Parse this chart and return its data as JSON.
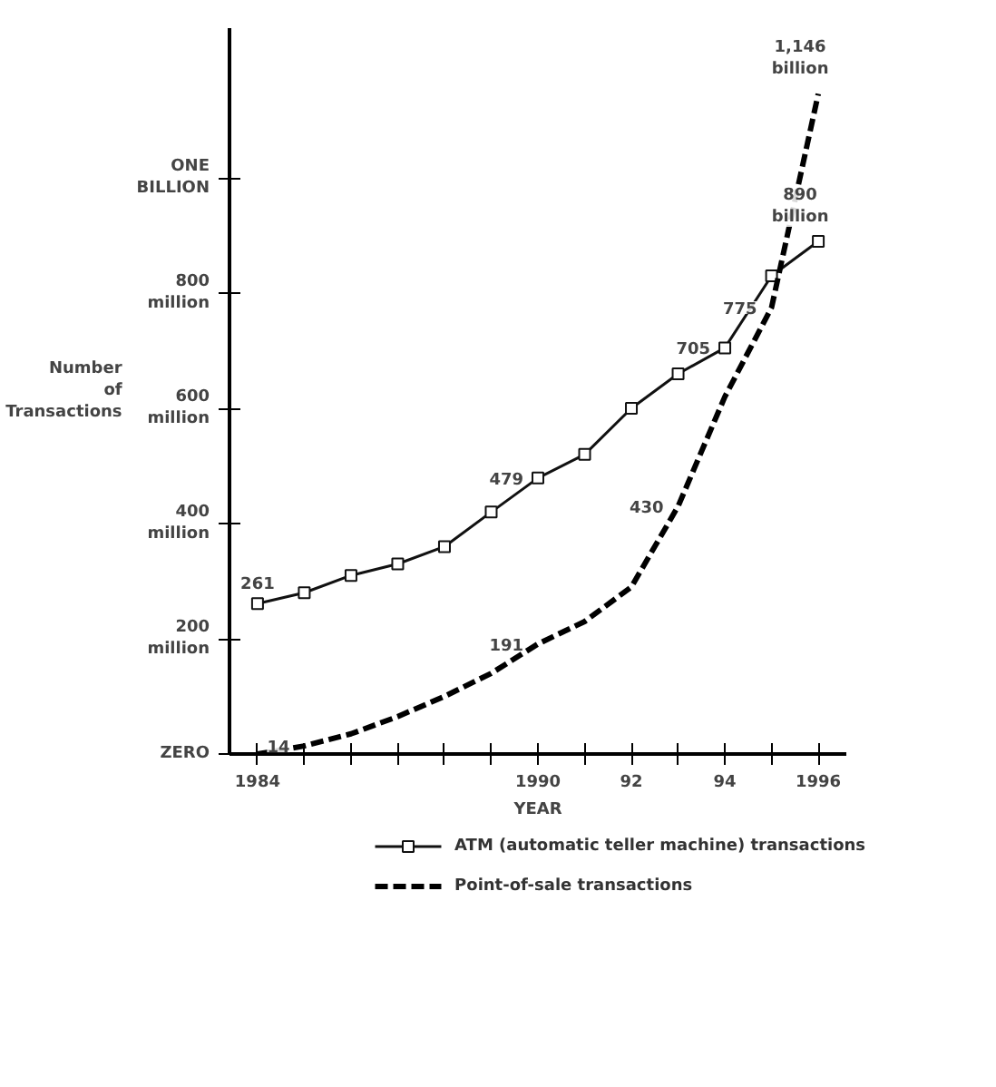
{
  "chart_data": {
    "type": "line",
    "x": [
      1984,
      1985,
      1986,
      1987,
      1988,
      1989,
      1990,
      1991,
      1992,
      1993,
      1994,
      1995,
      1996
    ],
    "series": [
      {
        "name": "ATM (automatic teller machine) transactions",
        "color": "#111111",
        "marker": "square",
        "line_style": "solid",
        "values": [
          261000000,
          280000000,
          310000000,
          330000000,
          360000000,
          420000000,
          479000000,
          520000000,
          600000000,
          660000000,
          705000000,
          830000000,
          890000000
        ]
      },
      {
        "name": "Point-of-sale transactions",
        "color": "#000000",
        "marker": "none",
        "line_style": "dashed",
        "values": [
          0,
          14000000,
          35000000,
          65000000,
          100000000,
          140000000,
          191000000,
          230000000,
          290000000,
          430000000,
          620000000,
          775000000,
          1146000000
        ]
      }
    ],
    "xlabel": "YEAR",
    "ylabel": "Number\nof\nTransactions",
    "xlim": [
      1983.4,
      1996.6
    ],
    "ylim": [
      0,
      1260000000
    ],
    "xticks": [
      1984,
      {
        "value": 1985,
        "label": null
      },
      {
        "value": 1986,
        "label": null
      },
      {
        "value": 1987,
        "label": null
      },
      {
        "value": 1988,
        "label": null
      },
      {
        "value": 1989,
        "label": null
      },
      1990,
      {
        "value": 1991,
        "label": null
      },
      {
        "value": 1992,
        "label": "92"
      },
      {
        "value": 1993,
        "label": null
      },
      {
        "value": 1994,
        "label": "94"
      },
      {
        "value": 1995,
        "label": null
      },
      1996
    ],
    "yticks": [
      {
        "value": 0,
        "label": "ZERO"
      },
      {
        "value": 200000000,
        "label": "200\nmillion"
      },
      {
        "value": 400000000,
        "label": "400\nmillion"
      },
      {
        "value": 600000000,
        "label": "600\nmillion"
      },
      {
        "value": 800000000,
        "label": "800\nmillion"
      },
      {
        "value": 1000000000,
        "label": "ONE\nBILLION"
      }
    ],
    "annotations": [
      {
        "text": "261",
        "x": 1984,
        "y": 261000000
      },
      {
        "text": "14",
        "x": 1985,
        "y": 14000000
      },
      {
        "text": "479",
        "x": 1990,
        "y": 479000000
      },
      {
        "text": "191",
        "x": 1990,
        "y": 191000000
      },
      {
        "text": "705",
        "x": 1994,
        "y": 705000000
      },
      {
        "text": "430",
        "x": 1993,
        "y": 430000000
      },
      {
        "text": "775",
        "x": 1995,
        "y": 775000000
      },
      {
        "text": "1,146\nbillion",
        "x": 1996,
        "y": 1146000000
      },
      {
        "text": "890\nbillion",
        "x": 1996,
        "y": 890000000
      }
    ],
    "grid": false,
    "legend": "bottom"
  }
}
